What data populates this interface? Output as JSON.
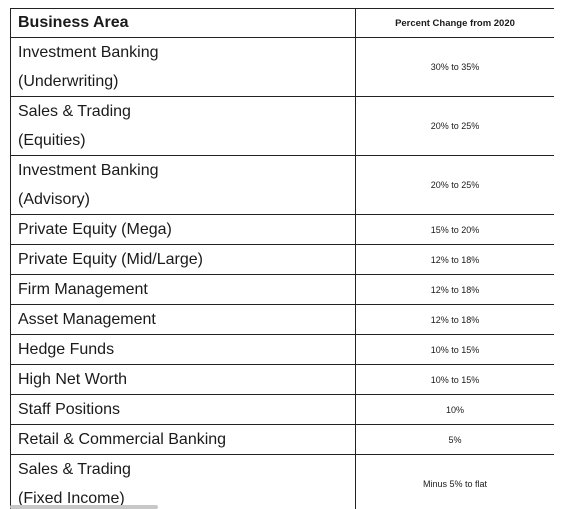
{
  "table": {
    "headers": {
      "area": "Business Area",
      "pct": "Percent Change from 2020"
    },
    "rows": [
      {
        "area_lines": [
          "Investment Banking",
          "(Underwriting)"
        ],
        "pct": "30% to 35%"
      },
      {
        "area_lines": [
          "Sales & Trading",
          "(Equities)"
        ],
        "pct": "20% to 25%"
      },
      {
        "area_lines": [
          "Investment Banking",
          "(Advisory)"
        ],
        "pct": "20% to 25%"
      },
      {
        "area_lines": [
          "Private Equity (Mega)"
        ],
        "pct": "15% to 20%"
      },
      {
        "area_lines": [
          "Private Equity (Mid/Large)"
        ],
        "pct": "12% to 18%"
      },
      {
        "area_lines": [
          "Firm Management"
        ],
        "pct": "12% to 18%"
      },
      {
        "area_lines": [
          "Asset Management"
        ],
        "pct": "12% to 18%"
      },
      {
        "area_lines": [
          "Hedge Funds"
        ],
        "pct": "10% to 15%"
      },
      {
        "area_lines": [
          "High Net Worth"
        ],
        "pct": "10% to 15%"
      },
      {
        "area_lines": [
          "Staff Positions"
        ],
        "pct": "10%"
      },
      {
        "area_lines": [
          "Retail & Commercial Banking"
        ],
        "pct": "5%"
      },
      {
        "area_lines": [
          "Sales & Trading",
          "(Fixed Income)"
        ],
        "pct": "Minus 5% to flat"
      }
    ]
  }
}
